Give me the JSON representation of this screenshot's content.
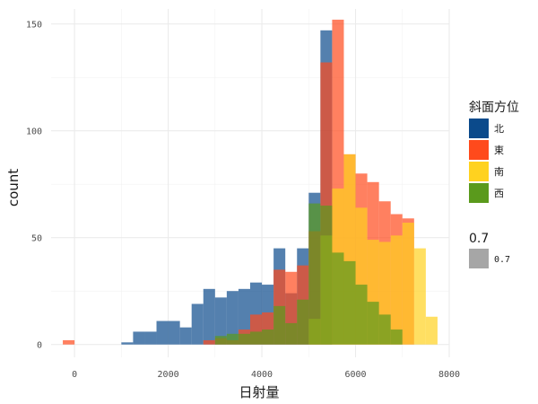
{
  "chart_data": {
    "type": "histogram",
    "xlabel": "日射量",
    "ylabel": "count",
    "xlim": [
      -500,
      8000
    ],
    "ylim": [
      -6,
      157
    ],
    "x_ticks": [
      0,
      2000,
      4000,
      6000,
      8000
    ],
    "y_ticks": [
      0,
      50,
      100,
      150
    ],
    "bin_width": 250,
    "grid": true,
    "position": "identity",
    "opacity": 0.7,
    "legend": {
      "fill_title": "斜面方位",
      "fill_entries": [
        "北",
        "東",
        "南",
        "西"
      ],
      "alpha_title": "0.7",
      "alpha_entries": [
        "0.7"
      ],
      "placement": "right"
    },
    "colors": {
      "北": "#0b4a8b",
      "東": "#ff4a1c",
      "南": "#ffd21f",
      "西": "#5a9a1c",
      "alpha_key": "#a6a6a6"
    },
    "series": [
      {
        "name": "北",
        "bins": [
          {
            "x0": 1000,
            "x1": 1250,
            "count": 1
          },
          {
            "x0": 1250,
            "x1": 1500,
            "count": 6
          },
          {
            "x0": 1500,
            "x1": 1750,
            "count": 6
          },
          {
            "x0": 1750,
            "x1": 2000,
            "count": 11
          },
          {
            "x0": 2000,
            "x1": 2250,
            "count": 11
          },
          {
            "x0": 2250,
            "x1": 2500,
            "count": 8
          },
          {
            "x0": 2500,
            "x1": 2750,
            "count": 19
          },
          {
            "x0": 2750,
            "x1": 3000,
            "count": 26
          },
          {
            "x0": 3000,
            "x1": 3250,
            "count": 22
          },
          {
            "x0": 3250,
            "x1": 3500,
            "count": 25
          },
          {
            "x0": 3500,
            "x1": 3750,
            "count": 26
          },
          {
            "x0": 3750,
            "x1": 4000,
            "count": 29
          },
          {
            "x0": 4000,
            "x1": 4250,
            "count": 28
          },
          {
            "x0": 4250,
            "x1": 4500,
            "count": 45
          },
          {
            "x0": 4500,
            "x1": 4750,
            "count": 24
          },
          {
            "x0": 4750,
            "x1": 5000,
            "count": 45
          },
          {
            "x0": 5000,
            "x1": 5250,
            "count": 71
          },
          {
            "x0": 5250,
            "x1": 5500,
            "count": 147
          }
        ]
      },
      {
        "name": "東",
        "bins": [
          {
            "x0": -250,
            "x1": 0,
            "count": 2
          },
          {
            "x0": 2750,
            "x1": 3000,
            "count": 2
          },
          {
            "x0": 3000,
            "x1": 3250,
            "count": 3
          },
          {
            "x0": 3250,
            "x1": 3500,
            "count": 2
          },
          {
            "x0": 3500,
            "x1": 3750,
            "count": 7
          },
          {
            "x0": 3750,
            "x1": 4000,
            "count": 14
          },
          {
            "x0": 4000,
            "x1": 4250,
            "count": 15
          },
          {
            "x0": 4250,
            "x1": 4500,
            "count": 35
          },
          {
            "x0": 4500,
            "x1": 4750,
            "count": 34
          },
          {
            "x0": 4750,
            "x1": 5000,
            "count": 37
          },
          {
            "x0": 5000,
            "x1": 5250,
            "count": 53
          },
          {
            "x0": 5250,
            "x1": 5500,
            "count": 132
          },
          {
            "x0": 5500,
            "x1": 5750,
            "count": 152
          },
          {
            "x0": 5750,
            "x1": 6000,
            "count": 89
          },
          {
            "x0": 6000,
            "x1": 6250,
            "count": 80
          },
          {
            "x0": 6250,
            "x1": 6500,
            "count": 76
          },
          {
            "x0": 6500,
            "x1": 6750,
            "count": 67
          },
          {
            "x0": 6750,
            "x1": 7000,
            "count": 61
          },
          {
            "x0": 7000,
            "x1": 7250,
            "count": 59
          }
        ]
      },
      {
        "name": "南",
        "bins": [
          {
            "x0": 5000,
            "x1": 5250,
            "count": 12
          },
          {
            "x0": 5250,
            "x1": 5500,
            "count": 51
          },
          {
            "x0": 5500,
            "x1": 5750,
            "count": 73
          },
          {
            "x0": 5750,
            "x1": 6000,
            "count": 89
          },
          {
            "x0": 6000,
            "x1": 6250,
            "count": 64
          },
          {
            "x0": 6250,
            "x1": 6500,
            "count": 49
          },
          {
            "x0": 6500,
            "x1": 6750,
            "count": 48
          },
          {
            "x0": 6750,
            "x1": 7000,
            "count": 51
          },
          {
            "x0": 7000,
            "x1": 7250,
            "count": 57
          },
          {
            "x0": 7250,
            "x1": 7500,
            "count": 45
          },
          {
            "x0": 7500,
            "x1": 7750,
            "count": 13
          }
        ]
      },
      {
        "name": "西",
        "bins": [
          {
            "x0": 3000,
            "x1": 3250,
            "count": 4
          },
          {
            "x0": 3250,
            "x1": 3500,
            "count": 5
          },
          {
            "x0": 3500,
            "x1": 3750,
            "count": 5
          },
          {
            "x0": 3750,
            "x1": 4000,
            "count": 6
          },
          {
            "x0": 4000,
            "x1": 4250,
            "count": 7
          },
          {
            "x0": 4250,
            "x1": 4500,
            "count": 18
          },
          {
            "x0": 4500,
            "x1": 4750,
            "count": 10
          },
          {
            "x0": 4750,
            "x1": 5000,
            "count": 21
          },
          {
            "x0": 5000,
            "x1": 5250,
            "count": 66
          },
          {
            "x0": 5250,
            "x1": 5500,
            "count": 65
          },
          {
            "x0": 5500,
            "x1": 5750,
            "count": 43
          },
          {
            "x0": 5750,
            "x1": 6000,
            "count": 39
          },
          {
            "x0": 6000,
            "x1": 6250,
            "count": 28
          },
          {
            "x0": 6250,
            "x1": 6500,
            "count": 20
          },
          {
            "x0": 6500,
            "x1": 6750,
            "count": 14
          },
          {
            "x0": 6750,
            "x1": 7000,
            "count": 7
          }
        ]
      }
    ]
  }
}
